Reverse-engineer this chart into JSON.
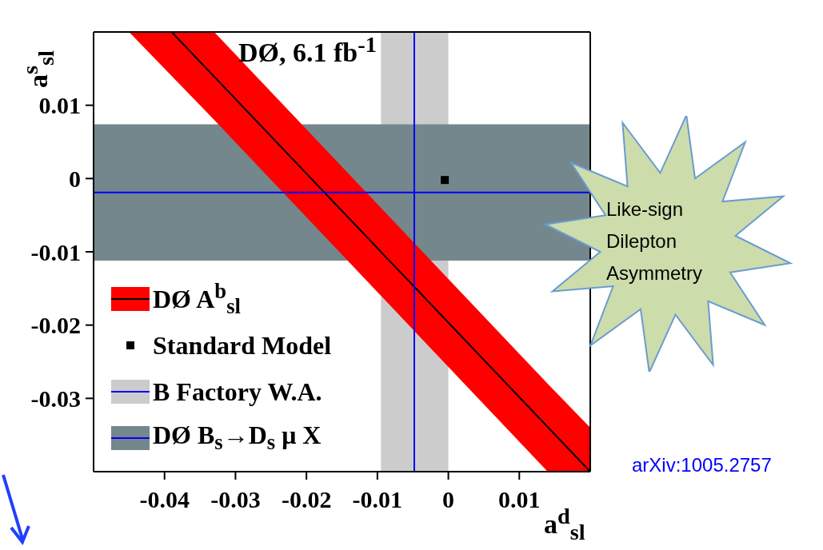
{
  "chart_data": {
    "type": "line",
    "xlabel": "a$^{d}$$_{sl}$",
    "ylabel": "a$^{s}$$_{sl}$",
    "series": [
      {
        "name": "DØ A$^{b}$$_{sl}$",
        "color": "#000000",
        "x": [
          -0.045,
          -0.039,
          -0.033,
          0.014,
          0.02
        ],
        "values": [
          null,
          0.02,
          0.0139,
          -0.0339,
          -0.04
        ],
        "lower": [
          0.02,
          0.014,
          0.008,
          -0.04,
          -0.04
        ],
        "upper": [
          0.02,
          0.02,
          0.02,
          -0.028,
          -0.034
        ]
      },
      {
        "type": "scatter",
        "name": "Standard Model",
        "color": "#000000",
        "x": [
          -0.0005
        ],
        "values": [
          -0.0002
        ],
        "marker": "square"
      }
    ],
    "bands": [
      {
        "axis": "x",
        "from": -0.0095,
        "to": 0,
        "label": "B Factory W.A.",
        "color": "#cccccc"
      },
      {
        "axis": "y",
        "from": -0.0112,
        "to": 0.0074,
        "label": "DØ B$_{s}$→D$_{s}$ μ X",
        "color": "#74878c"
      }
    ],
    "ref_lines": [
      {
        "axis": "x",
        "value": -0.0048,
        "color": "#0000ff"
      },
      {
        "axis": "y",
        "value": -0.0019,
        "color": "#0000ff"
      }
    ],
    "xlim": [
      -0.05,
      0.02
    ],
    "xticks": [
      -0.04,
      -0.03,
      -0.02,
      -0.01,
      0,
      0.01
    ],
    "ylim": [
      -0.04,
      0.02
    ],
    "yticks": [
      -0.03,
      -0.02,
      -0.01,
      0,
      0.01
    ],
    "grid": false,
    "legend": "bottom left",
    "annotations": [
      "DØ, 6.1 fb$^{-1}$",
      "Like-sign Dilepton Asymmetry",
      "arXiv:1005.2757"
    ]
  }
}
